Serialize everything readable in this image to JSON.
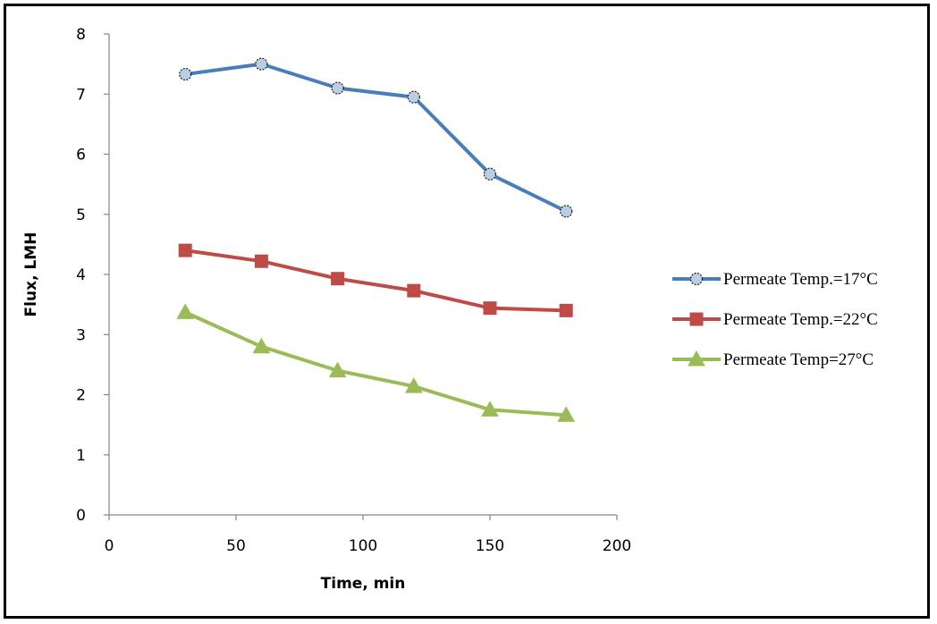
{
  "chart_data": {
    "type": "line",
    "title": "",
    "xlabel": "Time, min",
    "ylabel": "Flux, LMH",
    "xlim": [
      0,
      200
    ],
    "ylim": [
      0,
      8
    ],
    "xticks": [
      0,
      50,
      100,
      150,
      200
    ],
    "yticks": [
      0,
      1,
      2,
      3,
      4,
      5,
      6,
      7,
      8
    ],
    "grid": false,
    "legend_position": "right",
    "x": [
      30,
      60,
      90,
      120,
      150,
      180
    ],
    "series": [
      {
        "name": "Permeate Temp.=17°C",
        "color": "#4a7ebb",
        "marker": "circle",
        "marker_fill": "#b9cde5",
        "values": [
          7.33,
          7.5,
          7.1,
          6.95,
          5.67,
          5.05
        ]
      },
      {
        "name": "Permeate Temp.=22°C",
        "color": "#be4b48",
        "marker": "square",
        "marker_fill": "#be4b48",
        "values": [
          4.4,
          4.22,
          3.93,
          3.73,
          3.44,
          3.4
        ]
      },
      {
        "name": "Permeate Temp=27°C",
        "color": "#9bbb59",
        "marker": "triangle",
        "marker_fill": "#9bbb59",
        "values": [
          3.37,
          2.8,
          2.4,
          2.14,
          1.75,
          1.66
        ]
      }
    ]
  }
}
